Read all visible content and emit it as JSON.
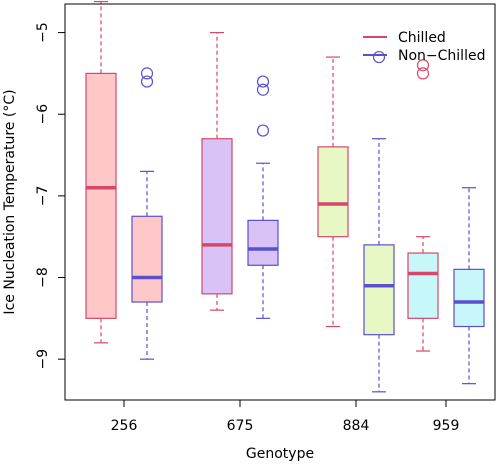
{
  "chart_data": {
    "type": "boxplot",
    "xlabel": "Genotype",
    "ylabel": "Ice Nucleation Temperature (°C)",
    "categories": [
      "256",
      "675",
      "884",
      "959"
    ],
    "ylim": [
      -9.5,
      -4.65
    ],
    "yticks": [
      -9,
      -8,
      -7,
      -6,
      -5
    ],
    "ytick_labels": [
      "−9",
      "−8",
      "−7",
      "−6",
      "−5"
    ],
    "grid": false,
    "legend_position": "top-right",
    "series": [
      {
        "name": "Chilled",
        "color": "#D6476A",
        "boxes": [
          {
            "category": "256",
            "whisker_low": -8.8,
            "q1": -8.5,
            "median": -6.9,
            "q3": -5.5,
            "whisker_high": -4.62,
            "outliers": []
          },
          {
            "category": "675",
            "whisker_low": -8.4,
            "q1": -8.2,
            "median": -7.6,
            "q3": -6.3,
            "whisker_high": -5.0,
            "outliers": []
          },
          {
            "category": "884",
            "whisker_low": -8.6,
            "q1": -7.5,
            "median": -7.1,
            "q3": -6.4,
            "whisker_high": -5.3,
            "outliers": []
          },
          {
            "category": "959",
            "whisker_low": -8.9,
            "q1": -8.5,
            "median": -7.95,
            "q3": -7.7,
            "whisker_high": -7.5,
            "outliers": [
              -5.4,
              -5.5
            ]
          }
        ]
      },
      {
        "name": "Non−Chilled",
        "color": "#5A4FCF",
        "boxes": [
          {
            "category": "256",
            "whisker_low": -9.0,
            "q1": -8.3,
            "median": -8.0,
            "q3": -7.25,
            "whisker_high": -6.7,
            "outliers": [
              -5.5,
              -5.6
            ]
          },
          {
            "category": "675",
            "whisker_low": -8.5,
            "q1": -7.85,
            "median": -7.65,
            "q3": -7.3,
            "whisker_high": -6.6,
            "outliers": [
              -5.6,
              -5.7,
              -6.2
            ]
          },
          {
            "category": "884",
            "whisker_low": -9.4,
            "q1": -8.7,
            "median": -8.1,
            "q3": -7.6,
            "whisker_high": -6.3,
            "outliers": [
              -5.3
            ]
          },
          {
            "category": "959",
            "whisker_low": -9.3,
            "q1": -8.6,
            "median": -8.3,
            "q3": -7.9,
            "whisker_high": -6.9,
            "outliers": []
          }
        ]
      }
    ],
    "box_fill_colors": [
      "#FFC8C8",
      "#D9C2F5",
      "#E7F8C4",
      "#C8F7FA"
    ]
  }
}
